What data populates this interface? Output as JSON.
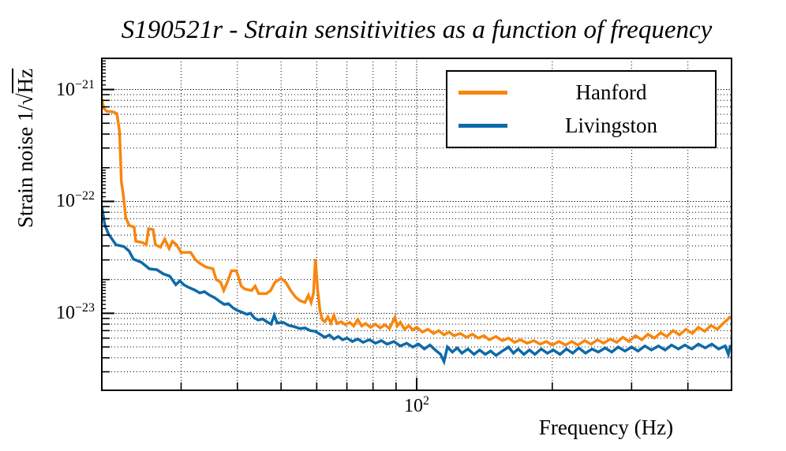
{
  "title": "S190521r - Strain sensitivities as a function of frequency",
  "axes": {
    "x": {
      "label": "Frequency (Hz)",
      "major_tick": {
        "base": "10",
        "exp": "2"
      }
    },
    "y": {
      "label_prefix": "Strain noise 1/",
      "label_radical": "√",
      "label_radicand": "Hz",
      "ticks": [
        {
          "base": "10",
          "exp": "−21"
        },
        {
          "base": "10",
          "exp": "−22"
        },
        {
          "base": "10",
          "exp": "−23"
        }
      ]
    }
  },
  "legend": {
    "items": [
      {
        "label": "Hanford",
        "color": "#f8860e"
      },
      {
        "label": "Livingston",
        "color": "#0e6aa8"
      }
    ]
  },
  "chart_data": {
    "type": "line",
    "title": "S190521r - Strain sensitivities as a function of frequency",
    "xlabel": "Frequency (Hz)",
    "ylabel": "Strain noise 1/√Hz",
    "xscale": "log",
    "yscale": "log",
    "xlim": [
      20,
      500
    ],
    "ylim": [
      2.05e-24,
      1.9e-21
    ],
    "xticks_major": [
      100
    ],
    "xticks_minor": [
      30,
      40,
      50,
      60,
      70,
      80,
      90,
      200,
      300,
      400
    ],
    "yticks_major": [
      1e-21,
      1e-22,
      1e-23
    ],
    "grid": true,
    "legend_position": "upper right",
    "series": [
      {
        "name": "Hanford",
        "color": "#f8860e",
        "points": [
          [
            20,
            8.2e-22
          ],
          [
            20.2,
            6.8e-22
          ],
          [
            20.5,
            6.4e-22
          ],
          [
            21.2,
            6.3e-22
          ],
          [
            21.6,
            6.1e-22
          ],
          [
            21.9,
            4.2e-22
          ],
          [
            22.1,
            1.5e-22
          ],
          [
            22.35,
            1.1e-22
          ],
          [
            22.6,
            7.2e-23
          ],
          [
            23.0,
            6.1e-23
          ],
          [
            23.6,
            5.9e-23
          ],
          [
            23.8,
            4.4e-23
          ],
          [
            24.6,
            4.3e-23
          ],
          [
            25.1,
            4.1e-23
          ],
          [
            25.4,
            5.7e-23
          ],
          [
            26.0,
            5.6e-23
          ],
          [
            26.3,
            4.1e-23
          ],
          [
            27.0,
            3.9e-23
          ],
          [
            27.6,
            4.6e-23
          ],
          [
            28.2,
            3.8e-23
          ],
          [
            28.7,
            4.4e-23
          ],
          [
            29.3,
            4.1e-23
          ],
          [
            30.0,
            3.5e-23
          ],
          [
            31.5,
            3.5e-23
          ],
          [
            32.3,
            3e-23
          ],
          [
            33.0,
            2.8e-23
          ],
          [
            34.0,
            2.6e-23
          ],
          [
            35.3,
            2.5e-23
          ],
          [
            35.9,
            2e-23
          ],
          [
            36.7,
            1.9e-23
          ],
          [
            37.3,
            1.6e-23
          ],
          [
            38.0,
            1.9e-23
          ],
          [
            38.8,
            2.4e-23
          ],
          [
            39.8,
            2.4e-23
          ],
          [
            40.8,
            1.75e-23
          ],
          [
            41.5,
            1.65e-23
          ],
          [
            43.0,
            1.6e-23
          ],
          [
            43.8,
            1.75e-23
          ],
          [
            44.6,
            1.5e-23
          ],
          [
            46.4,
            1.5e-23
          ],
          [
            47.4,
            1.6e-23
          ],
          [
            48.5,
            1.9e-23
          ],
          [
            50.0,
            2.05e-23
          ],
          [
            51.2,
            1.9e-23
          ],
          [
            52.5,
            1.6e-23
          ],
          [
            53.8,
            1.4e-23
          ],
          [
            55.0,
            1.3e-23
          ],
          [
            56.5,
            1.25e-23
          ],
          [
            57.5,
            1.45e-23
          ],
          [
            58.3,
            1.25e-23
          ],
          [
            59.0,
            1.5e-23
          ],
          [
            59.6,
            3.05e-23
          ],
          [
            60.3,
            1.6e-23
          ],
          [
            61.0,
            1.05e-23
          ],
          [
            61.8,
            8.7e-24
          ],
          [
            62.5,
            8.4e-24
          ],
          [
            63.5,
            9.3e-24
          ],
          [
            64.5,
            8.2e-24
          ],
          [
            65.5,
            9.6e-24
          ],
          [
            66.5,
            8.1e-24
          ],
          [
            68.0,
            8.4e-24
          ],
          [
            69.5,
            7.9e-24
          ],
          [
            71.0,
            8.3e-24
          ],
          [
            72.5,
            7.7e-24
          ],
          [
            74.0,
            8.8e-24
          ],
          [
            75.5,
            7.7e-24
          ],
          [
            77.0,
            8.1e-24
          ],
          [
            79.0,
            7.5e-24
          ],
          [
            81.0,
            8e-24
          ],
          [
            83.0,
            7.4e-24
          ],
          [
            85.0,
            7.9e-24
          ],
          [
            87.0,
            7.3e-24
          ],
          [
            89.5,
            9.2e-24
          ],
          [
            90.5,
            7.7e-24
          ],
          [
            92.0,
            8.3e-24
          ],
          [
            94.0,
            7.2e-24
          ],
          [
            96.0,
            7.8e-24
          ],
          [
            98.0,
            7.1e-24
          ],
          [
            100,
            7.5e-24
          ],
          [
            103,
            6.8e-24
          ],
          [
            106,
            7.2e-24
          ],
          [
            109,
            6.6e-24
          ],
          [
            112,
            7e-24
          ],
          [
            115,
            6.4e-24
          ],
          [
            118,
            6.8e-24
          ],
          [
            121,
            6.3e-24
          ],
          [
            125,
            6.6e-24
          ],
          [
            129,
            6.1e-24
          ],
          [
            133,
            6.5e-24
          ],
          [
            137,
            6e-24
          ],
          [
            141,
            6.3e-24
          ],
          [
            145,
            5.8e-24
          ],
          [
            150,
            6.2e-24
          ],
          [
            155,
            5.7e-24
          ],
          [
            160,
            6e-24
          ],
          [
            165,
            5.5e-24
          ],
          [
            170,
            5.8e-24
          ],
          [
            176,
            5.4e-24
          ],
          [
            182,
            5.7e-24
          ],
          [
            188,
            5.3e-24
          ],
          [
            194,
            5.6e-24
          ],
          [
            200,
            5.2e-24
          ],
          [
            207,
            5.6e-24
          ],
          [
            214,
            5.2e-24
          ],
          [
            221,
            5.6e-24
          ],
          [
            228,
            5.2e-24
          ],
          [
            236,
            5.7e-24
          ],
          [
            244,
            5.3e-24
          ],
          [
            252,
            5.8e-24
          ],
          [
            260,
            5.4e-24
          ],
          [
            269,
            5.9e-24
          ],
          [
            278,
            5.5e-24
          ],
          [
            287,
            6.1e-24
          ],
          [
            296,
            5.6e-24
          ],
          [
            306,
            6.3e-24
          ],
          [
            316,
            5.8e-24
          ],
          [
            326,
            6.5e-24
          ],
          [
            337,
            6e-24
          ],
          [
            348,
            6.7e-24
          ],
          [
            359,
            6.2e-24
          ],
          [
            371,
            7e-24
          ],
          [
            383,
            6.4e-24
          ],
          [
            396,
            7.2e-24
          ],
          [
            409,
            6.6e-24
          ],
          [
            422,
            7.5e-24
          ],
          [
            436,
            6.9e-24
          ],
          [
            450,
            7.8e-24
          ],
          [
            465,
            7.2e-24
          ],
          [
            480,
            8.2e-24
          ],
          [
            490,
            8.8e-24
          ],
          [
            497,
            9.4e-24
          ]
        ]
      },
      {
        "name": "Livingston",
        "color": "#0e6aa8",
        "points": [
          [
            20,
            9e-23
          ],
          [
            20.3,
            6.2e-23
          ],
          [
            20.7,
            5.1e-23
          ],
          [
            21.0,
            4.7e-23
          ],
          [
            21.5,
            4.1e-23
          ],
          [
            22.4,
            3.95e-23
          ],
          [
            23.0,
            3.6e-23
          ],
          [
            23.5,
            3.05e-23
          ],
          [
            24.5,
            2.85e-23
          ],
          [
            25.5,
            2.5e-23
          ],
          [
            26.5,
            2.45e-23
          ],
          [
            27.4,
            2.25e-23
          ],
          [
            28.3,
            2.15e-23
          ],
          [
            29.2,
            1.8e-23
          ],
          [
            29.8,
            1.95e-23
          ],
          [
            30.4,
            1.8e-23
          ],
          [
            31.2,
            1.7e-23
          ],
          [
            32.1,
            1.62e-23
          ],
          [
            33.0,
            1.52e-23
          ],
          [
            33.8,
            1.56e-23
          ],
          [
            34.7,
            1.45e-23
          ],
          [
            35.6,
            1.38e-23
          ],
          [
            36.5,
            1.28e-23
          ],
          [
            37.4,
            1.2e-23
          ],
          [
            38.2,
            1.22e-23
          ],
          [
            39.1,
            1.12e-23
          ],
          [
            40.0,
            1.06e-23
          ],
          [
            41.0,
            1.02e-23
          ],
          [
            42.0,
            9.8e-24
          ],
          [
            42.8,
            1e-23
          ],
          [
            43.6,
            9.1e-24
          ],
          [
            44.5,
            8.7e-24
          ],
          [
            45.5,
            8.9e-24
          ],
          [
            46.5,
            8.4e-24
          ],
          [
            47.5,
            8e-24
          ],
          [
            48.3,
            9.6e-24
          ],
          [
            49.0,
            8.2e-24
          ],
          [
            50.5,
            8.3e-24
          ],
          [
            52.0,
            7.8e-24
          ],
          [
            53.5,
            7.6e-24
          ],
          [
            55.0,
            7.3e-24
          ],
          [
            56.5,
            7.4e-24
          ],
          [
            58.0,
            7e-24
          ],
          [
            59.5,
            6.9e-24
          ],
          [
            61.0,
            6.5e-24
          ],
          [
            62.5,
            6.1e-24
          ],
          [
            64.0,
            6.4e-24
          ],
          [
            65.5,
            5.9e-24
          ],
          [
            67.0,
            6.2e-24
          ],
          [
            68.5,
            5.8e-24
          ],
          [
            70.0,
            6e-24
          ],
          [
            72.0,
            5.6e-24
          ],
          [
            74.0,
            5.9e-24
          ],
          [
            76.0,
            5.5e-24
          ],
          [
            78.5,
            5.8e-24
          ],
          [
            81.0,
            5.4e-24
          ],
          [
            83.5,
            5.7e-24
          ],
          [
            86.0,
            5.3e-24
          ],
          [
            89.0,
            5.6e-24
          ],
          [
            92.0,
            5.1e-24
          ],
          [
            95.0,
            5.4e-24
          ],
          [
            98.0,
            5e-24
          ],
          [
            101,
            5.3e-24
          ],
          [
            104,
            4.8e-24
          ],
          [
            107,
            5.2e-24
          ],
          [
            110,
            4.7e-24
          ],
          [
            113,
            4.3e-24
          ],
          [
            115,
            3.7e-24
          ],
          [
            117,
            5e-24
          ],
          [
            120,
            4.5e-24
          ],
          [
            123,
            4.9e-24
          ],
          [
            126,
            4.4e-24
          ],
          [
            130,
            4.8e-24
          ],
          [
            134,
            4.3e-24
          ],
          [
            138,
            4.7e-24
          ],
          [
            142,
            4.3e-24
          ],
          [
            146,
            4.6e-24
          ],
          [
            150,
            4.2e-24
          ],
          [
            155,
            4.6e-24
          ],
          [
            160,
            5e-24
          ],
          [
            164,
            4.4e-24
          ],
          [
            168,
            4.8e-24
          ],
          [
            173,
            4.3e-24
          ],
          [
            178,
            4.7e-24
          ],
          [
            183,
            4.3e-24
          ],
          [
            189,
            4.8e-24
          ],
          [
            195,
            4.4e-24
          ],
          [
            201,
            4.7e-24
          ],
          [
            208,
            4.3e-24
          ],
          [
            215,
            4.8e-24
          ],
          [
            222,
            4.4e-24
          ],
          [
            229,
            4.9e-24
          ],
          [
            237,
            4.4e-24
          ],
          [
            245,
            4.8e-24
          ],
          [
            253,
            4.5e-24
          ],
          [
            262,
            4.9e-24
          ],
          [
            271,
            4.5e-24
          ],
          [
            280,
            5e-24
          ],
          [
            290,
            4.6e-24
          ],
          [
            300,
            5e-24
          ],
          [
            310,
            4.6e-24
          ],
          [
            321,
            5.1e-24
          ],
          [
            332,
            4.7e-24
          ],
          [
            344,
            5.1e-24
          ],
          [
            356,
            4.7e-24
          ],
          [
            368,
            5.2e-24
          ],
          [
            381,
            4.8e-24
          ],
          [
            394,
            5.2e-24
          ],
          [
            408,
            4.8e-24
          ],
          [
            422,
            5.3e-24
          ],
          [
            437,
            4.9e-24
          ],
          [
            452,
            5.3e-24
          ],
          [
            468,
            4.8e-24
          ],
          [
            484,
            5.1e-24
          ],
          [
            492,
            4.3e-24
          ],
          [
            497,
            5.2e-24
          ]
        ]
      }
    ]
  }
}
